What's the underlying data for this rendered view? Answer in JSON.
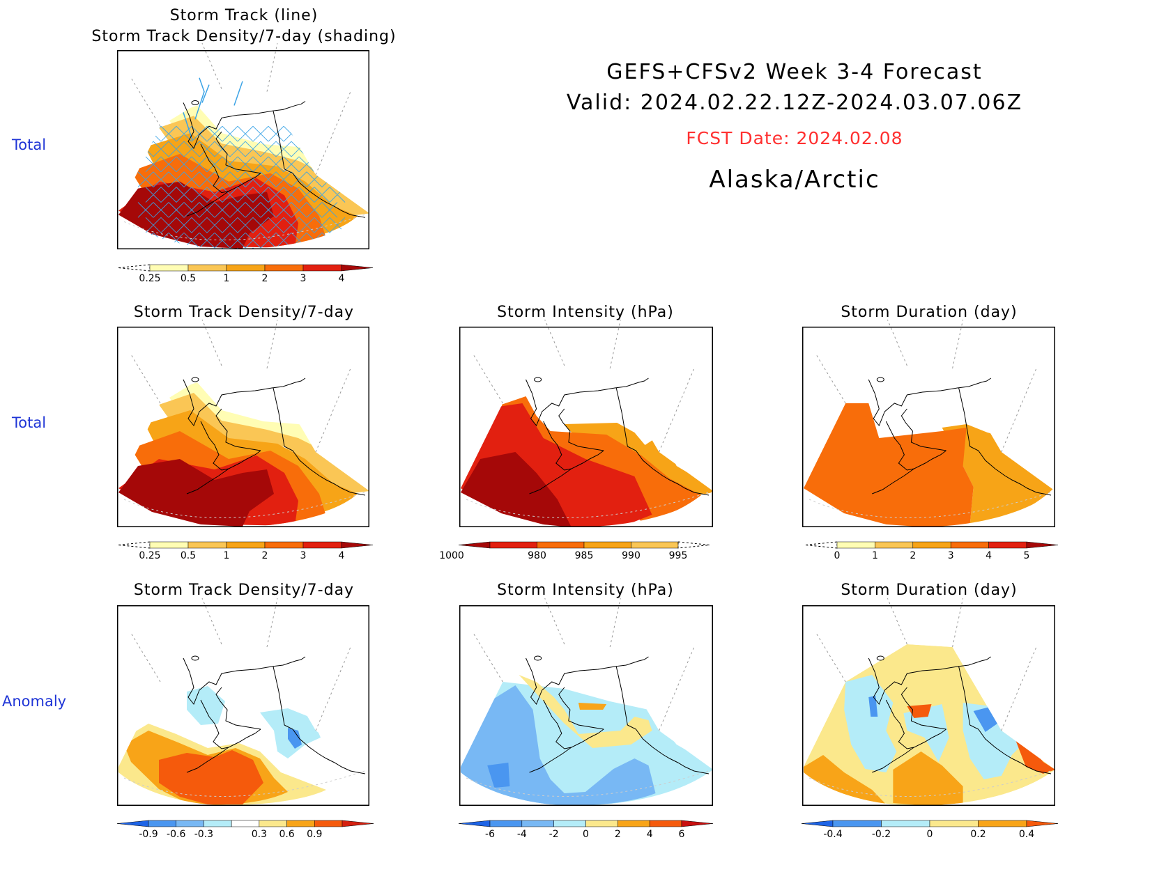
{
  "header": {
    "line1": "GEFS+CFSv2 Week 3-4 Forecast",
    "line2": "Valid: 2024.02.22.12Z-2024.03.07.06Z",
    "fcst": "FCST Date: 2024.02.08",
    "region": "Alaska/Arctic",
    "fcst_color": "#ff3030"
  },
  "row_labels": [
    "Total",
    "Total",
    "Anomaly"
  ],
  "panels": [
    {
      "id": "track",
      "title": [
        "Storm Track (line)",
        "Storm Track Density/7-day (shading)"
      ]
    },
    {
      "id": "density",
      "title": [
        "Storm Track Density/7-day"
      ]
    },
    {
      "id": "intensity",
      "title": [
        "Storm Intensity (hPa)"
      ]
    },
    {
      "id": "duration",
      "title": [
        "Storm Duration (day)"
      ]
    },
    {
      "id": "density-anom",
      "title": [
        "Storm Track Density/7-day"
      ]
    },
    {
      "id": "intensity-anom",
      "title": [
        "Storm Intensity (hPa)"
      ]
    },
    {
      "id": "duration-anom",
      "title": [
        "Storm Duration (day)"
      ]
    }
  ],
  "chart_data": [
    {
      "type": "heatmap",
      "panel": "track",
      "colorbar": {
        "labels": [
          "0.25",
          "0.5",
          "1",
          "2",
          "3",
          "4"
        ],
        "colors": [
          "#fffdb4",
          "#fac655",
          "#f7a417",
          "#f86d0a",
          "#e22010",
          "#a50808"
        ]
      }
    },
    {
      "type": "heatmap",
      "panel": "density",
      "colorbar": {
        "labels": [
          "0.25",
          "0.5",
          "1",
          "2",
          "3",
          "4"
        ],
        "colors": [
          "#fffdb4",
          "#fac655",
          "#f7a417",
          "#f86d0a",
          "#e22010",
          "#a50808"
        ]
      }
    },
    {
      "type": "heatmap",
      "panel": "intensity",
      "colorbar": {
        "labels": [
          "980",
          "985",
          "990",
          "995",
          "1000"
        ],
        "colors": [
          "#a50808",
          "#e22010",
          "#f86d0a",
          "#f7a417",
          "#fac655",
          "#fffdb4"
        ]
      }
    },
    {
      "type": "heatmap",
      "panel": "duration",
      "colorbar": {
        "labels": [
          "0",
          "1",
          "2",
          "3",
          "4",
          "5"
        ],
        "colors": [
          "#fffdb4",
          "#fac655",
          "#f7a417",
          "#f86d0a",
          "#e22010",
          "#a50808"
        ]
      }
    },
    {
      "type": "heatmap",
      "panel": "density-anom",
      "colorbar": {
        "labels": [
          "-0.9",
          "-0.6",
          "-0.3",
          "0.3",
          "0.6",
          "0.9"
        ],
        "colors": [
          "#1e64e6",
          "#4a96f0",
          "#78b8f4",
          "#b4ecf8",
          "#ffffff",
          "#fbe88c",
          "#f8a418",
          "#f55a0c",
          "#d42010"
        ]
      }
    },
    {
      "type": "heatmap",
      "panel": "intensity-anom",
      "colorbar": {
        "labels": [
          "-6",
          "-4",
          "-2",
          "0",
          "2",
          "4",
          "6"
        ],
        "colors": [
          "#1e64e6",
          "#4a96f0",
          "#78b8f4",
          "#b4ecf8",
          "#fbe88c",
          "#f8a418",
          "#f55a0c",
          "#c81010"
        ]
      }
    },
    {
      "type": "heatmap",
      "panel": "duration-anom",
      "colorbar": {
        "labels": [
          "-0.4",
          "-0.2",
          "0",
          "0.2",
          "0.4"
        ],
        "colors": [
          "#1e64e6",
          "#4a96f0",
          "#b4ecf8",
          "#fbe88c",
          "#f8a418",
          "#f55a0c"
        ]
      }
    }
  ]
}
